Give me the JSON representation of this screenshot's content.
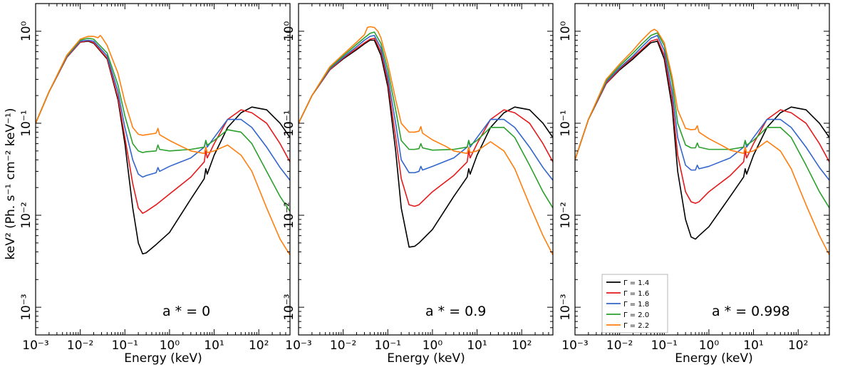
{
  "figure": {
    "ylabel": "keV² (Ph. s⁻¹ cm⁻² keV⁻¹)",
    "xlabel": "Energy (keV)"
  },
  "colors": {
    "Γ = 1.4": "#000000",
    "Γ = 1.6": "#e41a1c",
    "Γ = 1.8": "#3366cc",
    "Γ = 2.0": "#2ca02c",
    "Γ = 2.2": "#ff7f0e"
  },
  "chart_data": [
    {
      "type": "line",
      "annotation": "a * = 0",
      "xlabel": "Energy (keV)",
      "ylabel": "keV² (Ph. s⁻¹ cm⁻² keV⁻¹)",
      "xscale": "log",
      "yscale": "log",
      "xlim": [
        0.001,
        500
      ],
      "ylim": [
        0.0005,
        2.0
      ],
      "series": [
        {
          "name": "Γ = 1.4",
          "x": [
            0.001,
            0.002,
            0.005,
            0.01,
            0.015,
            0.02,
            0.04,
            0.07,
            0.1,
            0.15,
            0.2,
            0.25,
            0.3,
            0.5,
            1,
            3,
            6,
            6.5,
            7,
            10,
            20,
            40,
            70,
            150,
            300,
            500
          ],
          "y": [
            0.1,
            0.22,
            0.52,
            0.76,
            0.78,
            0.74,
            0.5,
            0.18,
            0.06,
            0.012,
            0.005,
            0.0038,
            0.0039,
            0.0048,
            0.0065,
            0.015,
            0.025,
            0.032,
            0.028,
            0.045,
            0.09,
            0.13,
            0.15,
            0.14,
            0.1,
            0.07
          ]
        },
        {
          "name": "Γ = 1.6",
          "x": [
            0.001,
            0.002,
            0.005,
            0.01,
            0.015,
            0.02,
            0.04,
            0.07,
            0.1,
            0.15,
            0.2,
            0.25,
            0.3,
            0.5,
            1,
            3,
            6,
            6.5,
            7,
            10,
            20,
            40,
            70,
            150,
            300,
            500
          ],
          "y": [
            0.1,
            0.22,
            0.52,
            0.76,
            0.79,
            0.75,
            0.51,
            0.19,
            0.07,
            0.022,
            0.012,
            0.0105,
            0.011,
            0.013,
            0.017,
            0.026,
            0.038,
            0.05,
            0.042,
            0.06,
            0.11,
            0.14,
            0.13,
            0.1,
            0.06,
            0.038
          ]
        },
        {
          "name": "Γ = 1.8",
          "x": [
            0.001,
            0.002,
            0.005,
            0.01,
            0.015,
            0.02,
            0.04,
            0.07,
            0.1,
            0.15,
            0.2,
            0.25,
            0.3,
            0.5,
            0.55,
            0.6,
            1,
            3,
            6,
            6.5,
            7,
            10,
            20,
            40,
            70,
            150,
            300,
            500
          ],
          "y": [
            0.1,
            0.22,
            0.53,
            0.78,
            0.8,
            0.78,
            0.54,
            0.22,
            0.09,
            0.04,
            0.028,
            0.026,
            0.027,
            0.029,
            0.033,
            0.03,
            0.034,
            0.042,
            0.055,
            0.065,
            0.055,
            0.07,
            0.11,
            0.11,
            0.09,
            0.055,
            0.033,
            0.024
          ]
        },
        {
          "name": "Γ = 2.0",
          "x": [
            0.001,
            0.002,
            0.005,
            0.01,
            0.015,
            0.02,
            0.04,
            0.07,
            0.1,
            0.15,
            0.2,
            0.25,
            0.3,
            0.5,
            0.55,
            0.6,
            1,
            3,
            6,
            6.5,
            7,
            10,
            20,
            40,
            70,
            150,
            300,
            500
          ],
          "y": [
            0.1,
            0.22,
            0.54,
            0.8,
            0.84,
            0.82,
            0.58,
            0.26,
            0.12,
            0.06,
            0.05,
            0.048,
            0.049,
            0.05,
            0.058,
            0.052,
            0.05,
            0.052,
            0.055,
            0.065,
            0.058,
            0.065,
            0.085,
            0.08,
            0.06,
            0.03,
            0.016,
            0.011
          ]
        },
        {
          "name": "Γ = 2.2",
          "x": [
            0.001,
            0.002,
            0.005,
            0.01,
            0.015,
            0.02,
            0.025,
            0.028,
            0.03,
            0.04,
            0.07,
            0.1,
            0.15,
            0.2,
            0.25,
            0.3,
            0.5,
            0.55,
            0.6,
            1,
            2,
            3,
            6,
            6.5,
            7,
            10,
            20,
            40,
            70,
            150,
            300,
            500
          ],
          "y": [
            0.1,
            0.22,
            0.55,
            0.82,
            0.88,
            0.88,
            0.85,
            0.9,
            0.87,
            0.7,
            0.35,
            0.17,
            0.09,
            0.076,
            0.074,
            0.075,
            0.078,
            0.088,
            0.075,
            0.065,
            0.055,
            0.05,
            0.047,
            0.055,
            0.048,
            0.05,
            0.058,
            0.045,
            0.03,
            0.012,
            0.0055,
            0.0037
          ]
        }
      ]
    },
    {
      "type": "line",
      "annotation": "a * = 0.9",
      "xlabel": "Energy (keV)",
      "ylabel": "",
      "xscale": "log",
      "yscale": "log",
      "xlim": [
        0.001,
        500
      ],
      "ylim": [
        0.0005,
        2.0
      ],
      "series": [
        {
          "name": "Γ = 1.4",
          "x": [
            0.001,
            0.002,
            0.005,
            0.01,
            0.02,
            0.03,
            0.04,
            0.05,
            0.07,
            0.1,
            0.15,
            0.2,
            0.3,
            0.4,
            0.5,
            1,
            3,
            6,
            6.5,
            7,
            10,
            20,
            40,
            70,
            150,
            300,
            500
          ],
          "y": [
            0.1,
            0.2,
            0.38,
            0.5,
            0.63,
            0.73,
            0.8,
            0.8,
            0.55,
            0.25,
            0.05,
            0.012,
            0.0045,
            0.0046,
            0.005,
            0.007,
            0.016,
            0.026,
            0.032,
            0.028,
            0.045,
            0.09,
            0.13,
            0.15,
            0.14,
            0.1,
            0.07
          ]
        },
        {
          "name": "Γ = 1.6",
          "x": [
            0.001,
            0.002,
            0.005,
            0.01,
            0.02,
            0.03,
            0.04,
            0.05,
            0.07,
            0.1,
            0.15,
            0.2,
            0.3,
            0.4,
            0.5,
            1,
            3,
            6,
            6.5,
            7,
            10,
            20,
            40,
            70,
            150,
            300,
            500
          ],
          "y": [
            0.1,
            0.2,
            0.38,
            0.51,
            0.65,
            0.75,
            0.82,
            0.84,
            0.6,
            0.28,
            0.07,
            0.025,
            0.013,
            0.0125,
            0.013,
            0.018,
            0.027,
            0.038,
            0.05,
            0.042,
            0.06,
            0.11,
            0.14,
            0.13,
            0.1,
            0.06,
            0.038
          ]
        },
        {
          "name": "Γ = 1.8",
          "x": [
            0.001,
            0.002,
            0.005,
            0.01,
            0.02,
            0.03,
            0.04,
            0.05,
            0.07,
            0.1,
            0.15,
            0.2,
            0.3,
            0.4,
            0.5,
            0.55,
            0.6,
            1,
            3,
            6,
            6.5,
            7,
            10,
            20,
            40,
            70,
            150,
            300,
            500
          ],
          "y": [
            0.1,
            0.2,
            0.39,
            0.52,
            0.68,
            0.8,
            0.88,
            0.9,
            0.66,
            0.32,
            0.1,
            0.04,
            0.029,
            0.029,
            0.03,
            0.034,
            0.031,
            0.034,
            0.042,
            0.055,
            0.065,
            0.055,
            0.07,
            0.11,
            0.11,
            0.09,
            0.055,
            0.033,
            0.024
          ]
        },
        {
          "name": "Γ = 2.0",
          "x": [
            0.001,
            0.002,
            0.005,
            0.01,
            0.02,
            0.03,
            0.04,
            0.05,
            0.07,
            0.1,
            0.15,
            0.2,
            0.3,
            0.4,
            0.5,
            0.55,
            0.6,
            1,
            3,
            6,
            6.5,
            7,
            10,
            20,
            40,
            70,
            150,
            300,
            500
          ],
          "y": [
            0.1,
            0.2,
            0.4,
            0.54,
            0.72,
            0.85,
            0.95,
            0.98,
            0.74,
            0.38,
            0.14,
            0.065,
            0.052,
            0.052,
            0.053,
            0.06,
            0.054,
            0.051,
            0.052,
            0.055,
            0.065,
            0.058,
            0.065,
            0.09,
            0.09,
            0.07,
            0.035,
            0.018,
            0.012
          ]
        },
        {
          "name": "Γ = 2.2",
          "x": [
            0.001,
            0.002,
            0.005,
            0.01,
            0.02,
            0.03,
            0.035,
            0.04,
            0.05,
            0.06,
            0.07,
            0.1,
            0.15,
            0.2,
            0.3,
            0.4,
            0.5,
            0.55,
            0.6,
            1,
            2,
            3,
            6,
            6.5,
            7,
            10,
            20,
            40,
            70,
            150,
            300,
            500
          ],
          "y": [
            0.1,
            0.2,
            0.41,
            0.56,
            0.76,
            0.92,
            1.1,
            1.12,
            1.1,
            1.0,
            0.85,
            0.45,
            0.18,
            0.1,
            0.08,
            0.08,
            0.082,
            0.092,
            0.078,
            0.066,
            0.056,
            0.05,
            0.047,
            0.055,
            0.048,
            0.05,
            0.063,
            0.05,
            0.032,
            0.013,
            0.006,
            0.0037
          ]
        }
      ]
    },
    {
      "type": "line",
      "annotation": "a * = 0.998",
      "xlabel": "Energy (keV)",
      "ylabel": "",
      "xscale": "log",
      "yscale": "log",
      "xlim": [
        0.001,
        500
      ],
      "ylim": [
        0.0005,
        2.0
      ],
      "legend": {
        "entries": [
          "Γ = 1.4",
          "Γ = 1.6",
          "Γ = 1.8",
          "Γ = 2.0",
          "Γ = 2.2"
        ],
        "placement": "lower-left"
      },
      "series": [
        {
          "name": "Γ = 1.4",
          "x": [
            0.001,
            0.002,
            0.005,
            0.01,
            0.02,
            0.03,
            0.05,
            0.07,
            0.1,
            0.15,
            0.2,
            0.3,
            0.4,
            0.5,
            0.6,
            1,
            3,
            6,
            6.5,
            7,
            10,
            20,
            40,
            70,
            150,
            300,
            500
          ],
          "y": [
            0.04,
            0.11,
            0.27,
            0.38,
            0.5,
            0.6,
            0.75,
            0.78,
            0.5,
            0.15,
            0.03,
            0.009,
            0.0058,
            0.0055,
            0.006,
            0.0075,
            0.016,
            0.026,
            0.032,
            0.028,
            0.045,
            0.09,
            0.13,
            0.15,
            0.14,
            0.1,
            0.07
          ]
        },
        {
          "name": "Γ = 1.6",
          "x": [
            0.001,
            0.002,
            0.005,
            0.01,
            0.02,
            0.03,
            0.05,
            0.07,
            0.1,
            0.15,
            0.2,
            0.3,
            0.4,
            0.5,
            0.6,
            1,
            3,
            6,
            6.5,
            7,
            10,
            20,
            40,
            70,
            150,
            300,
            500
          ],
          "y": [
            0.04,
            0.11,
            0.27,
            0.39,
            0.52,
            0.62,
            0.78,
            0.82,
            0.55,
            0.18,
            0.045,
            0.018,
            0.014,
            0.0135,
            0.014,
            0.018,
            0.027,
            0.038,
            0.05,
            0.042,
            0.06,
            0.11,
            0.14,
            0.13,
            0.1,
            0.06,
            0.038
          ]
        },
        {
          "name": "Γ = 1.8",
          "x": [
            0.001,
            0.002,
            0.005,
            0.01,
            0.02,
            0.03,
            0.05,
            0.07,
            0.1,
            0.15,
            0.2,
            0.3,
            0.4,
            0.5,
            0.55,
            0.6,
            1,
            3,
            6,
            6.5,
            7,
            10,
            20,
            40,
            70,
            150,
            300,
            500
          ],
          "y": [
            0.04,
            0.11,
            0.28,
            0.4,
            0.54,
            0.66,
            0.84,
            0.9,
            0.62,
            0.22,
            0.07,
            0.035,
            0.031,
            0.031,
            0.035,
            0.032,
            0.034,
            0.042,
            0.055,
            0.065,
            0.055,
            0.07,
            0.11,
            0.11,
            0.09,
            0.055,
            0.033,
            0.024
          ]
        },
        {
          "name": "Γ = 2.0",
          "x": [
            0.001,
            0.002,
            0.005,
            0.01,
            0.02,
            0.03,
            0.05,
            0.07,
            0.1,
            0.15,
            0.2,
            0.3,
            0.4,
            0.5,
            0.55,
            0.6,
            1,
            3,
            6,
            6.5,
            7,
            10,
            20,
            40,
            70,
            150,
            300,
            500
          ],
          "y": [
            0.04,
            0.11,
            0.29,
            0.42,
            0.58,
            0.71,
            0.9,
            0.96,
            0.7,
            0.28,
            0.1,
            0.058,
            0.054,
            0.054,
            0.061,
            0.055,
            0.052,
            0.052,
            0.055,
            0.065,
            0.058,
            0.065,
            0.09,
            0.09,
            0.07,
            0.035,
            0.018,
            0.012
          ]
        },
        {
          "name": "Γ = 2.2",
          "x": [
            0.001,
            0.002,
            0.005,
            0.01,
            0.02,
            0.03,
            0.05,
            0.06,
            0.07,
            0.1,
            0.15,
            0.2,
            0.3,
            0.4,
            0.5,
            0.55,
            0.6,
            1,
            2,
            3,
            6,
            6.5,
            7,
            10,
            20,
            40,
            70,
            150,
            300,
            500
          ],
          "y": [
            0.04,
            0.11,
            0.3,
            0.44,
            0.62,
            0.78,
            1.0,
            1.05,
            1.0,
            0.75,
            0.32,
            0.14,
            0.088,
            0.085,
            0.086,
            0.094,
            0.08,
            0.068,
            0.057,
            0.051,
            0.047,
            0.055,
            0.048,
            0.05,
            0.064,
            0.05,
            0.032,
            0.013,
            0.006,
            0.0037
          ]
        }
      ]
    }
  ]
}
